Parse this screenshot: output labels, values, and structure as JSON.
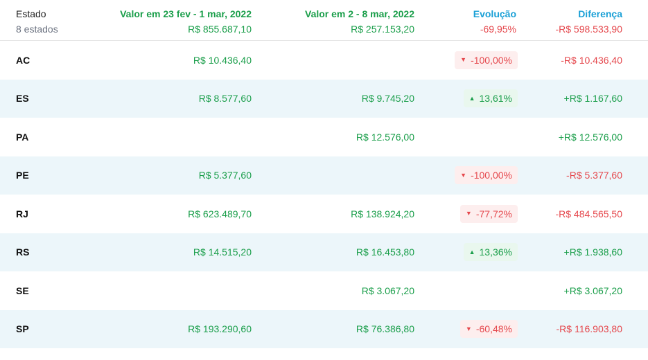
{
  "header": {
    "estado_title": "Estado",
    "estado_count": "8 estados",
    "period1_title": "Valor em 23 fev - 1 mar, 2022",
    "period1_total": "R$ 855.687,10",
    "period2_title": "Valor em 2 - 8 mar, 2022",
    "period2_total": "R$ 257.153,20",
    "evolucao_title": "Evolução",
    "evolucao_total": "-69,95%",
    "diferenca_title": "Diferença",
    "diferenca_total": "-R$ 598.533,90"
  },
  "rows": [
    {
      "estado": "AC",
      "v1": "R$ 10.436,40",
      "v2": "",
      "evo": "-100,00%",
      "evo_dir": "down",
      "diff": "-R$ 10.436,40",
      "diff_dir": "neg"
    },
    {
      "estado": "ES",
      "v1": "R$ 8.577,60",
      "v2": "R$ 9.745,20",
      "evo": "13,61%",
      "evo_dir": "up",
      "diff": "+R$ 1.167,60",
      "diff_dir": "pos"
    },
    {
      "estado": "PA",
      "v1": "",
      "v2": "R$ 12.576,00",
      "evo": "",
      "evo_dir": "",
      "diff": "+R$ 12.576,00",
      "diff_dir": "pos"
    },
    {
      "estado": "PE",
      "v1": "R$ 5.377,60",
      "v2": "",
      "evo": "-100,00%",
      "evo_dir": "down",
      "diff": "-R$ 5.377,60",
      "diff_dir": "neg"
    },
    {
      "estado": "RJ",
      "v1": "R$ 623.489,70",
      "v2": "R$ 138.924,20",
      "evo": "-77,72%",
      "evo_dir": "down",
      "diff": "-R$ 484.565,50",
      "diff_dir": "neg"
    },
    {
      "estado": "RS",
      "v1": "R$ 14.515,20",
      "v2": "R$ 16.453,80",
      "evo": "13,36%",
      "evo_dir": "up",
      "diff": "+R$ 1.938,60",
      "diff_dir": "pos"
    },
    {
      "estado": "SE",
      "v1": "",
      "v2": "R$ 3.067,20",
      "evo": "",
      "evo_dir": "",
      "diff": "+R$ 3.067,20",
      "diff_dir": "pos"
    },
    {
      "estado": "SP",
      "v1": "R$ 193.290,60",
      "v2": "R$ 76.386,80",
      "evo": "-60,48%",
      "evo_dir": "down",
      "diff": "-R$ 116.903,80",
      "diff_dir": "neg"
    }
  ],
  "colors": {
    "green": "#1a9e4a",
    "red": "#e5484d",
    "blue": "#1aa0d6",
    "row_alt_bg": "#ecf6fa"
  }
}
